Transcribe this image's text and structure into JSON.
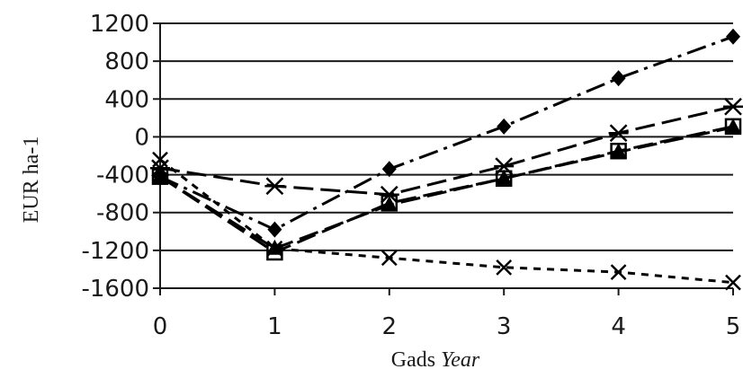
{
  "chart_data": {
    "type": "line",
    "xlabel_prefix": "Gads",
    "xlabel_italic": "Year",
    "ylabel": "EUR ha-1",
    "x": [
      0,
      1,
      2,
      3,
      4,
      5
    ],
    "x_tick_labels": [
      "0",
      "1",
      "2",
      "3",
      "4",
      "5"
    ],
    "y_tick_labels": [
      "1200",
      "800",
      "400",
      "0",
      "-400",
      "-800",
      "-1200",
      "-1600"
    ],
    "y_ticks": [
      1200,
      800,
      400,
      0,
      -400,
      -800,
      -1200,
      -1600
    ],
    "ylim": [
      -1600,
      1200
    ],
    "xlim": [
      0,
      5
    ],
    "grid": "horizontal",
    "legend": "none",
    "series": [
      {
        "marker": "diamond",
        "dash": "long-dash-dot",
        "values": [
          -420,
          -980,
          -340,
          110,
          620,
          1060
        ]
      },
      {
        "marker": "asterisk",
        "dash": "long-dash",
        "values": [
          -330,
          -520,
          -610,
          -310,
          40,
          320
        ]
      },
      {
        "marker": "triangle",
        "dash": "long-dash",
        "values": [
          -420,
          -1180,
          -720,
          -440,
          -160,
          100
        ]
      },
      {
        "marker": "square",
        "dash": "long-dash",
        "values": [
          -420,
          -1220,
          -700,
          -440,
          -150,
          110
        ]
      },
      {
        "marker": "cross",
        "dash": "short-dash",
        "values": [
          -240,
          -1180,
          -1280,
          -1380,
          -1430,
          -1540
        ]
      }
    ]
  }
}
